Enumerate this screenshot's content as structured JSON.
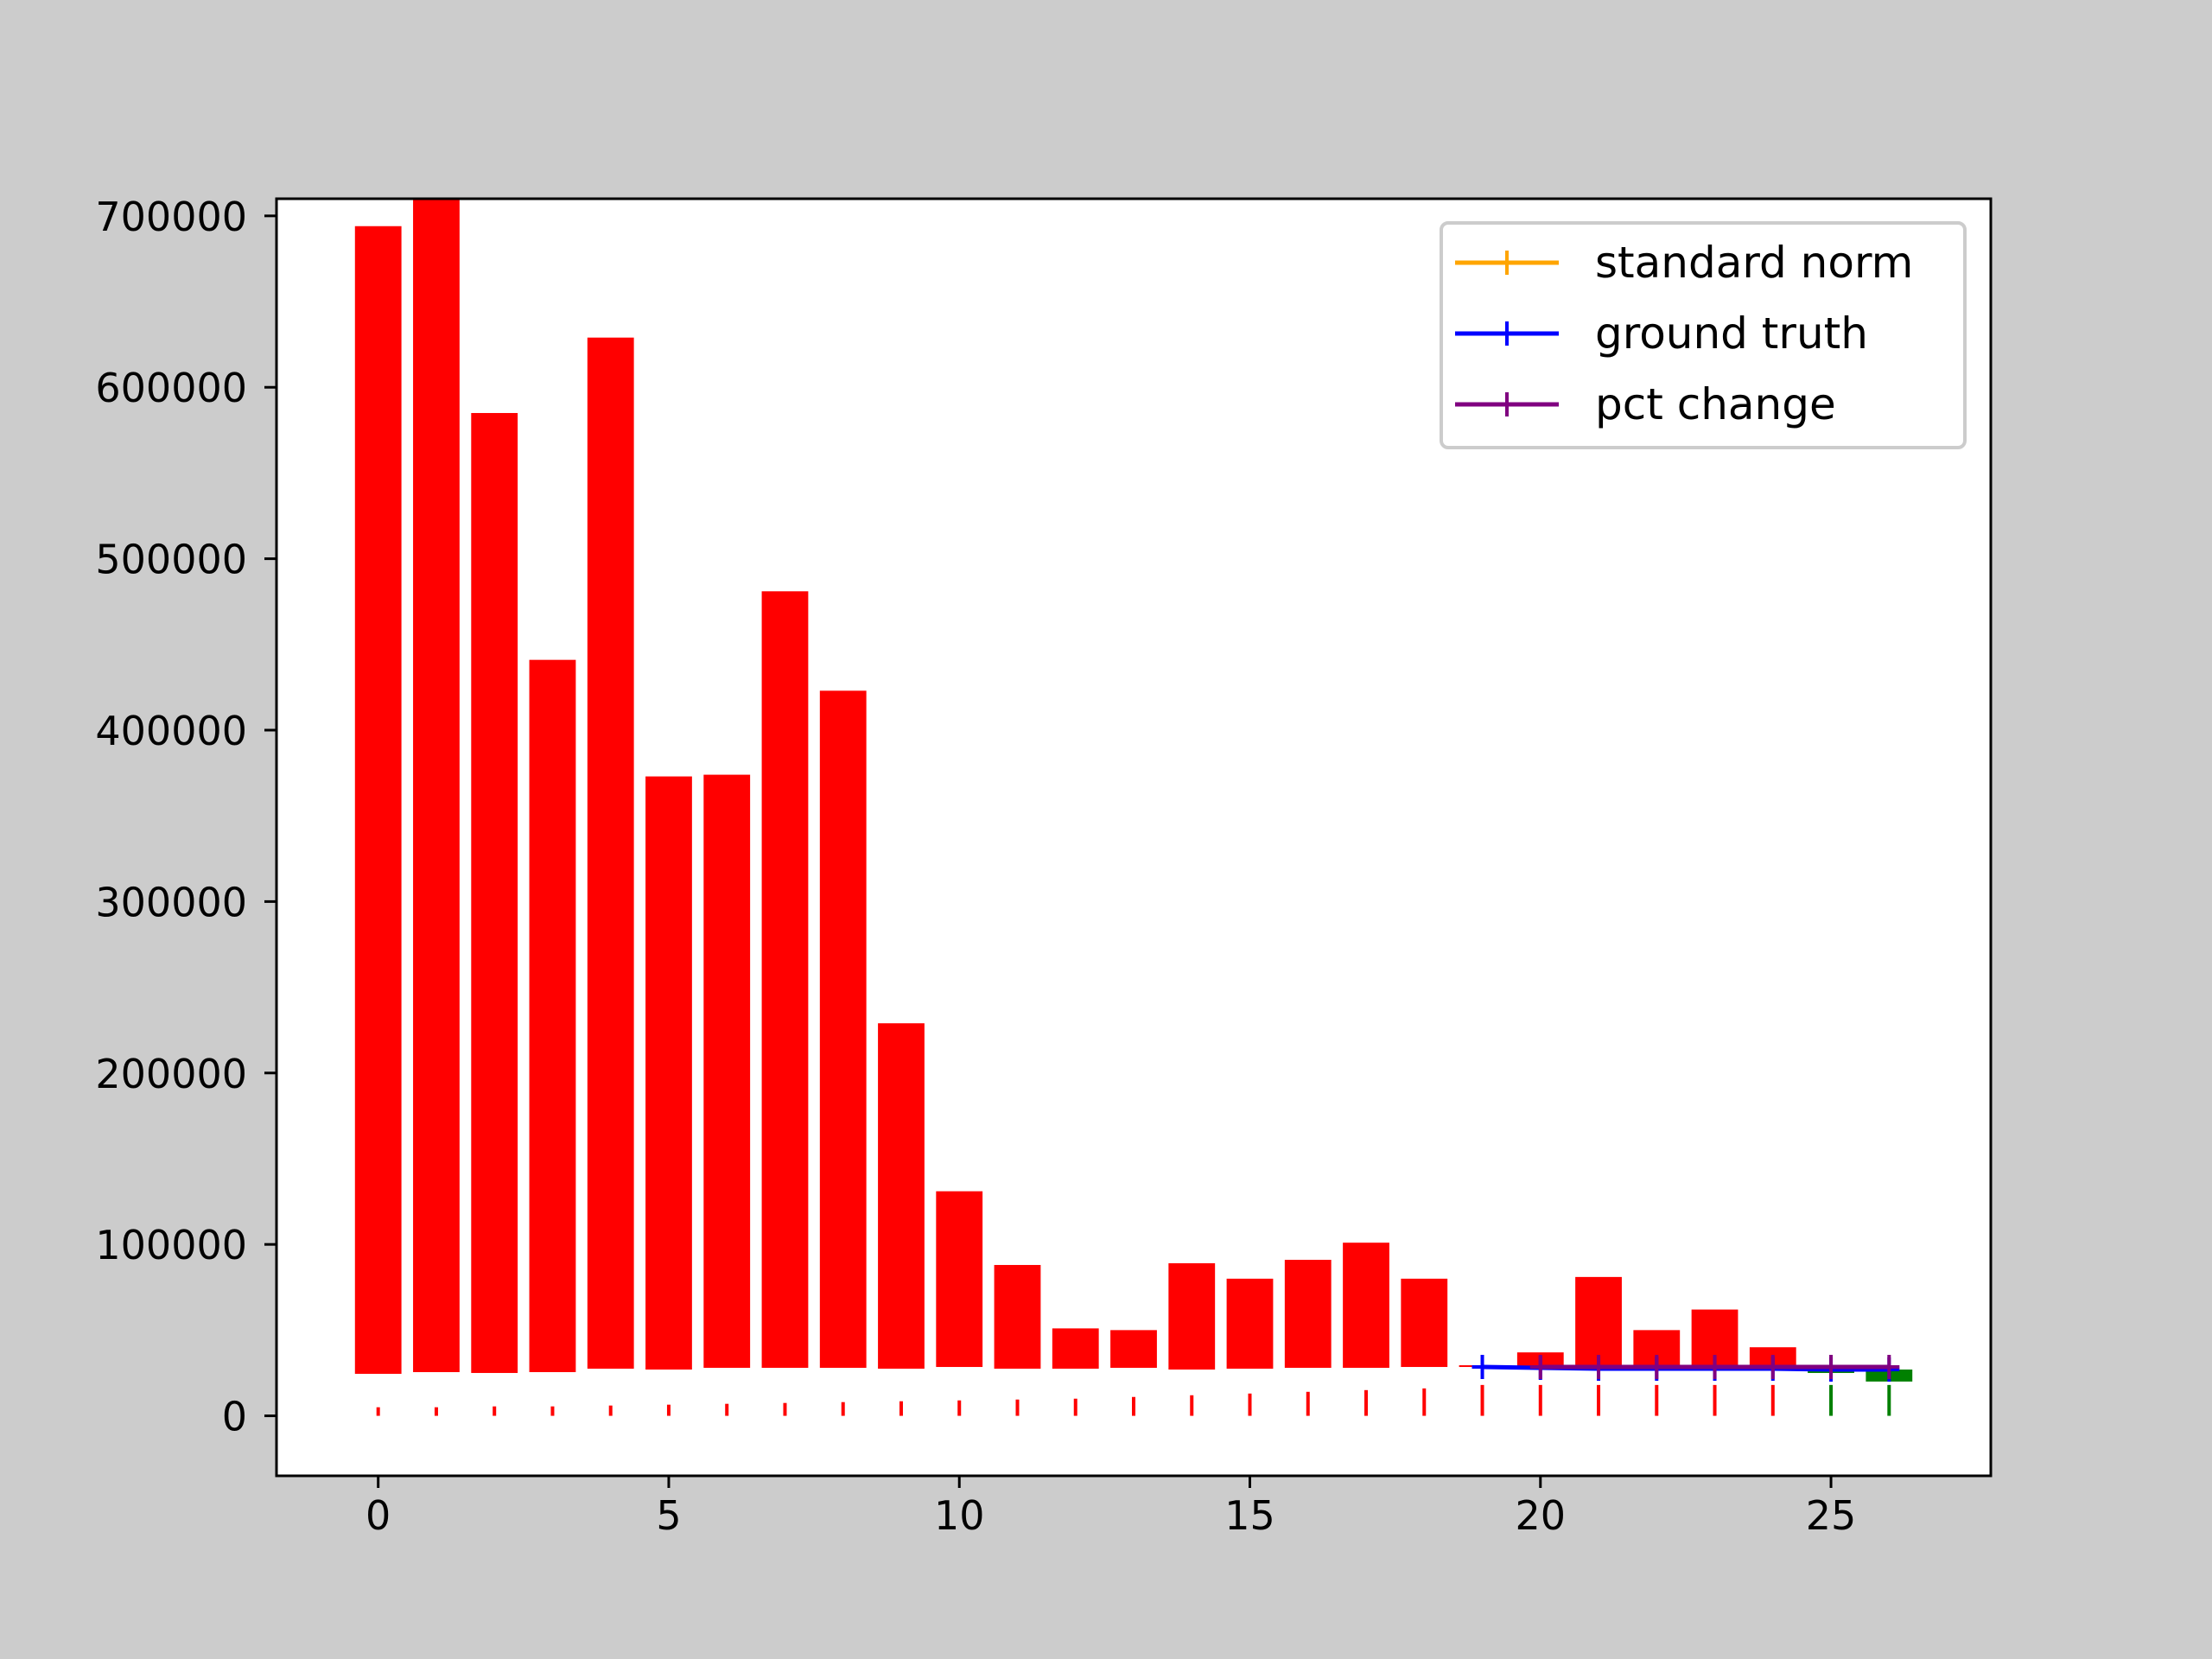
{
  "chart_data": {
    "type": "bar",
    "title": "",
    "xlabel": "",
    "ylabel": "",
    "xlim": [
      -1.75,
      27.75
    ],
    "ylim": [
      -35000,
      710000
    ],
    "x_ticks": [
      0,
      5,
      10,
      15,
      20,
      25
    ],
    "x_tick_labels": [
      "0",
      "5",
      "10",
      "15",
      "20",
      "25"
    ],
    "y_ticks": [
      0,
      100000,
      200000,
      300000,
      400000,
      500000,
      600000,
      700000
    ],
    "y_tick_labels": [
      "0",
      "100000",
      "200000",
      "300000",
      "400000",
      "500000",
      "600000",
      "700000"
    ],
    "grid": false,
    "legend_position": "top-right",
    "bars": [
      {
        "x": 0,
        "low": 24500,
        "high": 694000,
        "color": "#ff0000"
      },
      {
        "x": 1,
        "low": 25500,
        "high": 710000,
        "color": "#ff0000"
      },
      {
        "x": 2,
        "low": 25000,
        "high": 585000,
        "color": "#ff0000"
      },
      {
        "x": 3,
        "low": 25500,
        "high": 441000,
        "color": "#ff0000"
      },
      {
        "x": 4,
        "low": 27500,
        "high": 629000,
        "color": "#ff0000"
      },
      {
        "x": 5,
        "low": 27000,
        "high": 373000,
        "color": "#ff0000"
      },
      {
        "x": 6,
        "low": 28000,
        "high": 374000,
        "color": "#ff0000"
      },
      {
        "x": 7,
        "low": 28000,
        "high": 481000,
        "color": "#ff0000"
      },
      {
        "x": 8,
        "low": 28000,
        "high": 423000,
        "color": "#ff0000"
      },
      {
        "x": 9,
        "low": 27500,
        "high": 229000,
        "color": "#ff0000"
      },
      {
        "x": 10,
        "low": 28500,
        "high": 131000,
        "color": "#ff0000"
      },
      {
        "x": 11,
        "low": 27500,
        "high": 88000,
        "color": "#ff0000"
      },
      {
        "x": 12,
        "low": 27500,
        "high": 51000,
        "color": "#ff0000"
      },
      {
        "x": 13,
        "low": 28000,
        "high": 50000,
        "color": "#ff0000"
      },
      {
        "x": 14,
        "low": 27000,
        "high": 89000,
        "color": "#ff0000"
      },
      {
        "x": 15,
        "low": 27500,
        "high": 80000,
        "color": "#ff0000"
      },
      {
        "x": 16,
        "low": 28000,
        "high": 91000,
        "color": "#ff0000"
      },
      {
        "x": 17,
        "low": 28000,
        "high": 101000,
        "color": "#ff0000"
      },
      {
        "x": 18,
        "low": 28500,
        "high": 80000,
        "color": "#ff0000"
      },
      {
        "x": 19,
        "low": 28500,
        "high": 29500,
        "color": "#ff0000"
      },
      {
        "x": 20,
        "low": 29000,
        "high": 37000,
        "color": "#ff0000"
      },
      {
        "x": 21,
        "low": 29000,
        "high": 81000,
        "color": "#ff0000"
      },
      {
        "x": 22,
        "low": 29000,
        "high": 50000,
        "color": "#ff0000"
      },
      {
        "x": 23,
        "low": 29500,
        "high": 62000,
        "color": "#ff0000"
      },
      {
        "x": 24,
        "low": 29500,
        "high": 40000,
        "color": "#ff0000"
      },
      {
        "x": 25,
        "low": 25000,
        "high": 28500,
        "color": "#008000"
      },
      {
        "x": 26,
        "low": 20000,
        "high": 27000,
        "color": "#008000"
      }
    ],
    "bottom_ticks": [
      {
        "x": 0,
        "value": 5000,
        "color": "#ff0000"
      },
      {
        "x": 1,
        "value": 5000,
        "color": "#ff0000"
      },
      {
        "x": 2,
        "value": 5500,
        "color": "#ff0000"
      },
      {
        "x": 3,
        "value": 5500,
        "color": "#ff0000"
      },
      {
        "x": 4,
        "value": 6000,
        "color": "#ff0000"
      },
      {
        "x": 5,
        "value": 6500,
        "color": "#ff0000"
      },
      {
        "x": 6,
        "value": 7000,
        "color": "#ff0000"
      },
      {
        "x": 7,
        "value": 7500,
        "color": "#ff0000"
      },
      {
        "x": 8,
        "value": 8000,
        "color": "#ff0000"
      },
      {
        "x": 9,
        "value": 8500,
        "color": "#ff0000"
      },
      {
        "x": 10,
        "value": 9000,
        "color": "#ff0000"
      },
      {
        "x": 11,
        "value": 9500,
        "color": "#ff0000"
      },
      {
        "x": 12,
        "value": 10000,
        "color": "#ff0000"
      },
      {
        "x": 13,
        "value": 11000,
        "color": "#ff0000"
      },
      {
        "x": 14,
        "value": 12000,
        "color": "#ff0000"
      },
      {
        "x": 15,
        "value": 13000,
        "color": "#ff0000"
      },
      {
        "x": 16,
        "value": 14000,
        "color": "#ff0000"
      },
      {
        "x": 17,
        "value": 15000,
        "color": "#ff0000"
      },
      {
        "x": 18,
        "value": 16000,
        "color": "#ff0000"
      },
      {
        "x": 19,
        "value": 18000,
        "color": "#ff0000"
      },
      {
        "x": 20,
        "value": 18000,
        "color": "#ff0000"
      },
      {
        "x": 21,
        "value": 18000,
        "color": "#ff0000"
      },
      {
        "x": 22,
        "value": 18000,
        "color": "#ff0000"
      },
      {
        "x": 23,
        "value": 18000,
        "color": "#ff0000"
      },
      {
        "x": 24,
        "value": 18000,
        "color": "#ff0000"
      },
      {
        "x": 25,
        "value": 18000,
        "color": "#008000"
      },
      {
        "x": 26,
        "value": 18000,
        "color": "#008000"
      }
    ],
    "series": [
      {
        "name": "standard norm",
        "color": "#ffa500",
        "x": [],
        "values": []
      },
      {
        "name": "ground truth",
        "color": "#0000ff",
        "x": [
          19,
          20,
          21,
          22,
          23,
          24,
          25,
          26
        ],
        "values": [
          28500,
          28000,
          27500,
          27500,
          27500,
          27500,
          27000,
          27000
        ]
      },
      {
        "name": "pct change",
        "color": "#800080",
        "x": [
          20,
          21,
          22,
          23,
          24,
          25,
          26
        ],
        "values": [
          28500,
          28500,
          28500,
          28500,
          28500,
          28500,
          28500
        ]
      }
    ]
  }
}
